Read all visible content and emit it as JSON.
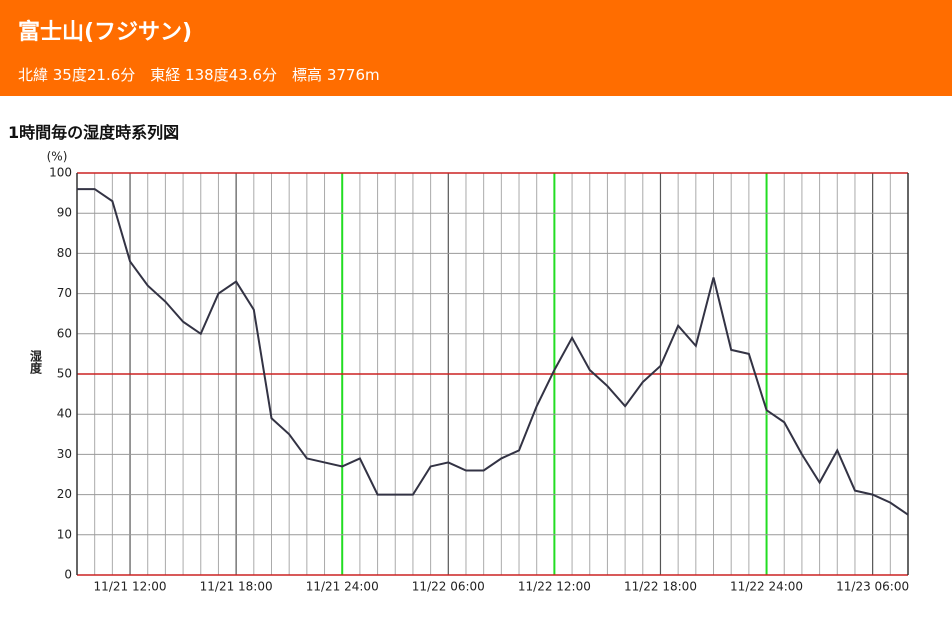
{
  "header": {
    "title": "富士山(フジサン)",
    "subtitle": "北緯 35度21.6分　東経 138度43.6分　標高 3776m"
  },
  "chart_data": {
    "type": "line",
    "title": "1時間毎の湿度時系列図",
    "y_unit": "(%)",
    "y_label": "湿度",
    "categories": [
      null,
      null,
      null,
      "11/21 12:00",
      null,
      null,
      null,
      null,
      null,
      "11/21 18:00",
      null,
      null,
      null,
      null,
      null,
      "11/21 24:00",
      null,
      null,
      null,
      null,
      null,
      "11/22 06:00",
      null,
      null,
      null,
      null,
      null,
      "11/22 12:00",
      null,
      null,
      null,
      null,
      null,
      "11/22 18:00",
      null,
      null,
      null,
      null,
      null,
      "11/22 24:00",
      null,
      null,
      null,
      null,
      null,
      "11/23 06:00",
      null,
      null
    ],
    "values": [
      96,
      96,
      93,
      78,
      72,
      68,
      63,
      60,
      70,
      73,
      66,
      39,
      35,
      29,
      28,
      27,
      29,
      20,
      20,
      20,
      27,
      28,
      26,
      26,
      29,
      31,
      42,
      51,
      59,
      51,
      47,
      42,
      48,
      52,
      62,
      57,
      74,
      56,
      55,
      41,
      38,
      30,
      23,
      31,
      21,
      20,
      18,
      15
    ],
    "color": "#333344",
    "ylim": [
      0,
      100
    ],
    "yticks": [
      0,
      10,
      20,
      30,
      40,
      50,
      60,
      70,
      80,
      90,
      100
    ],
    "grid": true
  }
}
